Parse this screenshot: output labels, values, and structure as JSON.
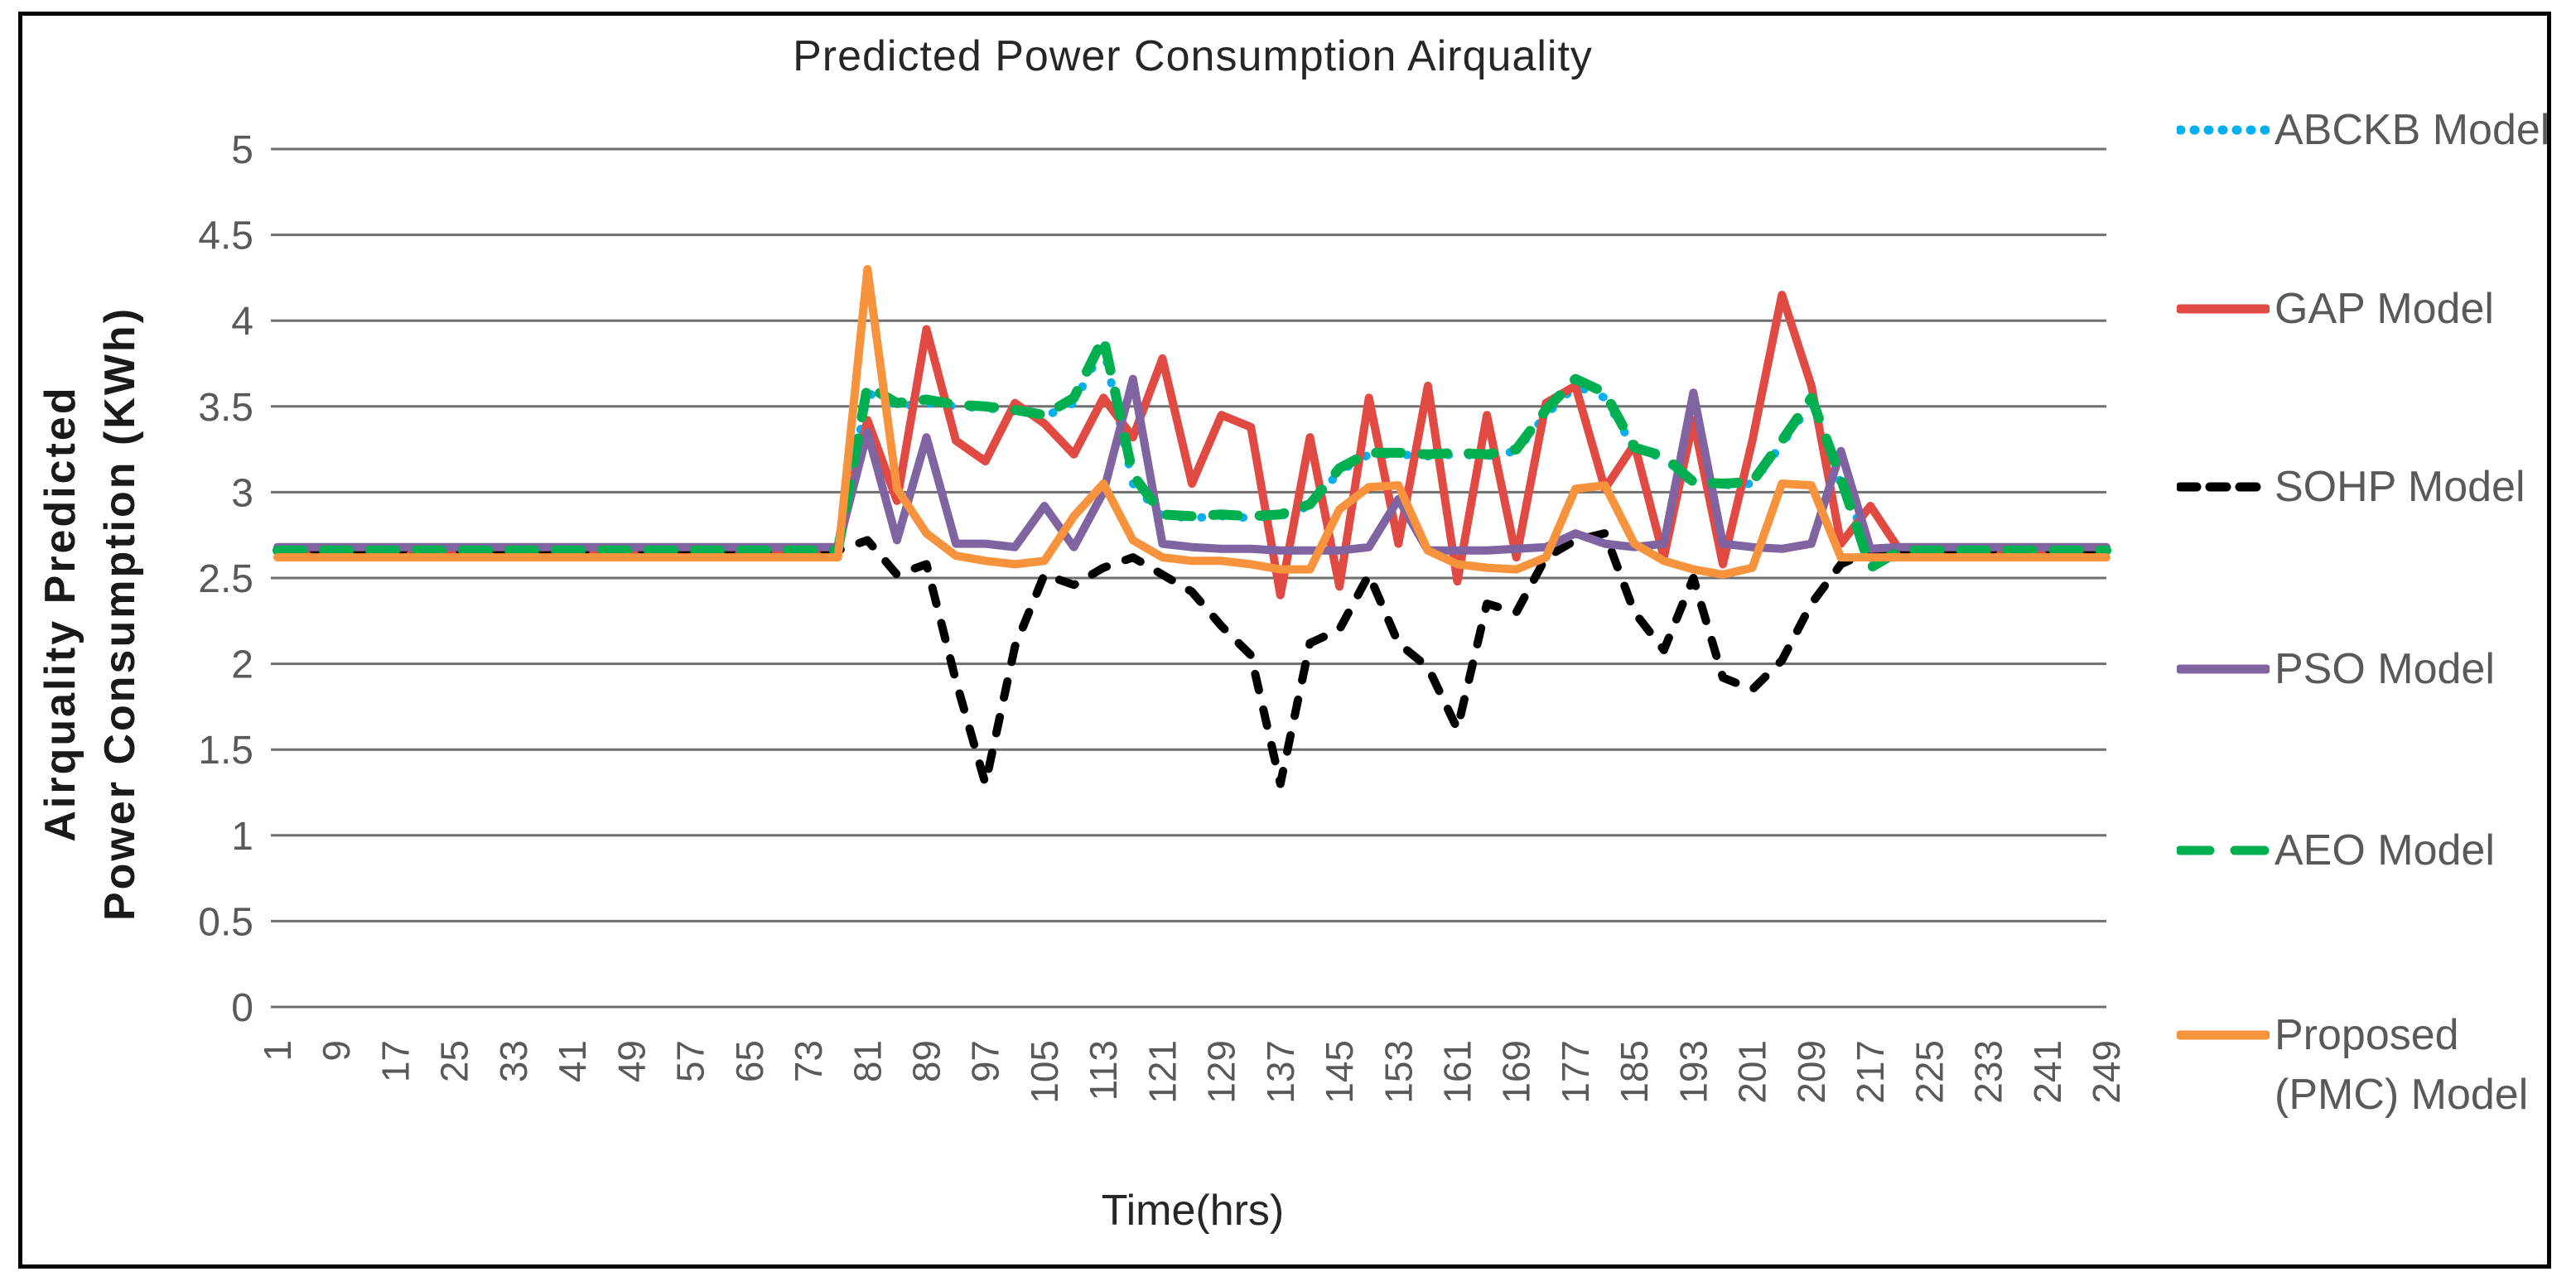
{
  "figure": {
    "background": "#ffffff",
    "border_color": "#000000"
  },
  "chart_data": {
    "type": "line",
    "title": "Predicted Power Consumption Airquality",
    "xlabel": "Time(hrs)",
    "ylabel_line1": "Airquality Predicted",
    "ylabel_line2": "Power Consumption (KWh)",
    "xlim": [
      1,
      249
    ],
    "ylim": [
      0,
      5
    ],
    "grid": true,
    "gridline_color": "#6F6F6F",
    "tick_label_color": "#595959",
    "legend_position": "right",
    "yticks": [
      0,
      0.5,
      1,
      1.5,
      2,
      2.5,
      3,
      3.5,
      4,
      4.5,
      5
    ],
    "ytick_labels": [
      "0",
      "0.5",
      "1",
      "1.5",
      "2",
      "2.5",
      "3",
      "3.5",
      "4",
      "4.5",
      "5"
    ],
    "xticks": [
      1,
      9,
      17,
      25,
      33,
      41,
      49,
      57,
      65,
      73,
      81,
      89,
      97,
      105,
      113,
      121,
      129,
      137,
      145,
      153,
      161,
      169,
      177,
      185,
      193,
      201,
      209,
      217,
      225,
      233,
      241,
      249
    ],
    "x": [
      1,
      5,
      9,
      13,
      17,
      21,
      25,
      29,
      33,
      37,
      41,
      45,
      49,
      53,
      57,
      61,
      65,
      69,
      73,
      77,
      81,
      85,
      89,
      93,
      97,
      101,
      105,
      109,
      113,
      117,
      121,
      125,
      129,
      133,
      137,
      141,
      145,
      149,
      153,
      157,
      161,
      165,
      169,
      173,
      177,
      181,
      185,
      189,
      193,
      197,
      201,
      205,
      209,
      213,
      217,
      221,
      225,
      229,
      233,
      237,
      241,
      245,
      249
    ],
    "series": [
      {
        "name": "ABCKB Model",
        "legend_lines": [
          "ABCKB Model"
        ],
        "color": "#00B0F0",
        "style": "dotted",
        "values": [
          2.66,
          2.66,
          2.66,
          2.66,
          2.66,
          2.66,
          2.66,
          2.66,
          2.66,
          2.66,
          2.66,
          2.66,
          2.66,
          2.66,
          2.66,
          2.66,
          2.66,
          2.66,
          2.66,
          2.66,
          3.58,
          3.5,
          3.52,
          3.5,
          3.49,
          3.47,
          3.44,
          3.52,
          3.85,
          3.05,
          2.86,
          2.85,
          2.86,
          2.85,
          2.86,
          2.92,
          3.12,
          3.22,
          3.22,
          3.21,
          3.22,
          3.21,
          3.24,
          3.45,
          3.62,
          3.55,
          3.25,
          3.2,
          3.05,
          3.04,
          3.05,
          3.28,
          3.52,
          3.05,
          2.68,
          2.66,
          2.66,
          2.66,
          2.66,
          2.66,
          2.66,
          2.66,
          2.66
        ]
      },
      {
        "name": "GAP Model",
        "legend_lines": [
          "GAP Model"
        ],
        "color": "#E04A42",
        "style": "solid",
        "values": [
          2.66,
          2.66,
          2.66,
          2.66,
          2.66,
          2.66,
          2.66,
          2.66,
          2.66,
          2.66,
          2.66,
          2.66,
          2.66,
          2.66,
          2.66,
          2.66,
          2.66,
          2.66,
          2.66,
          2.66,
          3.42,
          2.95,
          3.95,
          3.3,
          3.18,
          3.52,
          3.4,
          3.22,
          3.55,
          3.32,
          3.78,
          3.05,
          3.45,
          3.38,
          2.4,
          3.32,
          2.45,
          3.55,
          2.7,
          3.62,
          2.48,
          3.45,
          2.62,
          3.52,
          3.62,
          3.02,
          3.28,
          2.62,
          3.42,
          2.58,
          3.3,
          4.15,
          3.62,
          2.7,
          2.92,
          2.66,
          2.66,
          2.66,
          2.66,
          2.66,
          2.66,
          2.66,
          2.66
        ]
      },
      {
        "name": "SOHP Model",
        "legend_lines": [
          "SOHP Model"
        ],
        "color": "#000000",
        "style": "dashed",
        "values": [
          2.66,
          2.66,
          2.66,
          2.66,
          2.66,
          2.66,
          2.66,
          2.66,
          2.66,
          2.66,
          2.66,
          2.66,
          2.66,
          2.66,
          2.66,
          2.66,
          2.66,
          2.66,
          2.66,
          2.66,
          2.72,
          2.52,
          2.58,
          1.9,
          1.3,
          2.1,
          2.52,
          2.46,
          2.56,
          2.62,
          2.52,
          2.42,
          2.22,
          2.05,
          1.3,
          2.12,
          2.2,
          2.52,
          2.12,
          1.98,
          1.62,
          2.35,
          2.3,
          2.62,
          2.72,
          2.76,
          2.3,
          2.08,
          2.5,
          1.92,
          1.85,
          2.02,
          2.35,
          2.58,
          2.66,
          2.66,
          2.66,
          2.66,
          2.66,
          2.66,
          2.66,
          2.66,
          2.66
        ]
      },
      {
        "name": "PSO Model",
        "legend_lines": [
          "PSO Model"
        ],
        "color": "#8064A2",
        "style": "solid",
        "values": [
          2.68,
          2.68,
          2.68,
          2.68,
          2.68,
          2.68,
          2.68,
          2.68,
          2.68,
          2.68,
          2.68,
          2.68,
          2.68,
          2.68,
          2.68,
          2.68,
          2.68,
          2.68,
          2.68,
          2.68,
          3.35,
          2.72,
          3.32,
          2.7,
          2.7,
          2.68,
          2.92,
          2.68,
          3.0,
          3.66,
          2.7,
          2.68,
          2.67,
          2.67,
          2.66,
          2.66,
          2.66,
          2.68,
          2.96,
          2.66,
          2.66,
          2.66,
          2.67,
          2.68,
          2.76,
          2.7,
          2.68,
          2.7,
          3.58,
          2.7,
          2.68,
          2.67,
          2.7,
          3.24,
          2.67,
          2.68,
          2.68,
          2.68,
          2.68,
          2.68,
          2.68,
          2.68,
          2.68
        ]
      },
      {
        "name": "AEO Model",
        "legend_lines": [
          "AEO Model"
        ],
        "color": "#00B050",
        "style": "long-dash",
        "values": [
          2.66,
          2.66,
          2.66,
          2.66,
          2.66,
          2.66,
          2.66,
          2.66,
          2.66,
          2.66,
          2.66,
          2.66,
          2.66,
          2.66,
          2.66,
          2.66,
          2.66,
          2.66,
          2.66,
          2.66,
          3.62,
          3.52,
          3.54,
          3.51,
          3.5,
          3.48,
          3.45,
          3.55,
          3.9,
          3.1,
          2.87,
          2.86,
          2.87,
          2.86,
          2.87,
          2.93,
          3.14,
          3.23,
          3.23,
          3.22,
          3.23,
          3.22,
          3.25,
          3.48,
          3.66,
          3.58,
          3.26,
          3.21,
          3.06,
          3.05,
          3.06,
          3.3,
          3.55,
          3.08,
          2.56,
          2.66,
          2.66,
          2.66,
          2.66,
          2.66,
          2.66,
          2.66,
          2.66
        ]
      },
      {
        "name": "Proposed (PMC) Model",
        "legend_lines": [
          "Proposed",
          "(PMC) Model"
        ],
        "color": "#F7923D",
        "style": "solid",
        "values": [
          2.62,
          2.62,
          2.62,
          2.62,
          2.62,
          2.62,
          2.62,
          2.62,
          2.62,
          2.62,
          2.62,
          2.62,
          2.62,
          2.62,
          2.62,
          2.62,
          2.62,
          2.62,
          2.62,
          2.62,
          4.3,
          3.02,
          2.76,
          2.63,
          2.6,
          2.58,
          2.6,
          2.86,
          3.05,
          2.72,
          2.62,
          2.6,
          2.6,
          2.58,
          2.55,
          2.55,
          2.9,
          3.03,
          3.04,
          2.66,
          2.58,
          2.56,
          2.55,
          2.62,
          3.02,
          3.04,
          2.7,
          2.6,
          2.55,
          2.52,
          2.56,
          3.05,
          3.04,
          2.62,
          2.62,
          2.62,
          2.62,
          2.62,
          2.62,
          2.62,
          2.62,
          2.62,
          2.62
        ]
      }
    ]
  }
}
